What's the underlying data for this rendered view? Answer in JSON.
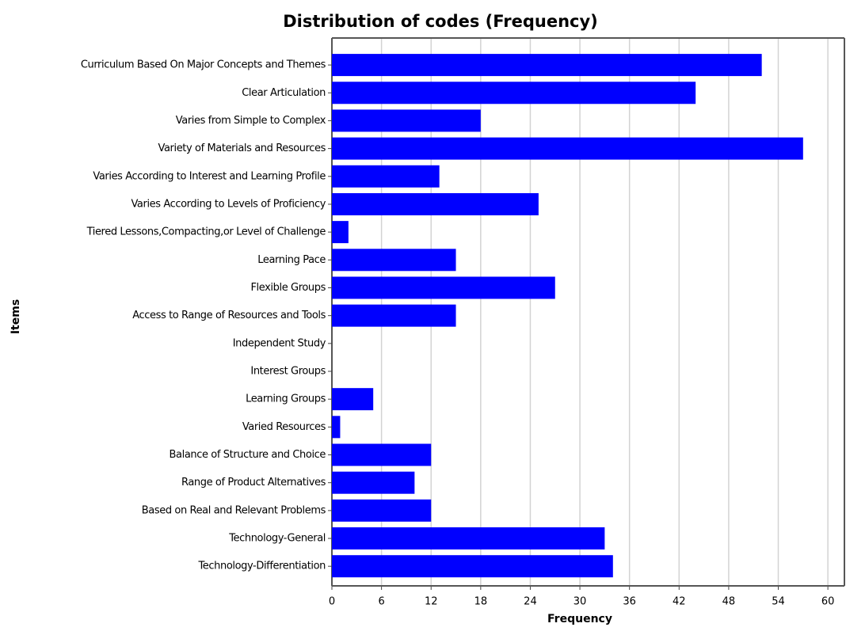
{
  "chart_data": {
    "type": "barh",
    "title": "Distribution of codes (Frequency)",
    "x_label": "Frequency",
    "y_label": "Items",
    "categories": [
      "Curriculum Based On Major Concepts and Themes",
      "Clear Articulation",
      "Varies from Simple to Complex",
      "Variety of Materials and Resources",
      "Varies According to Interest and Learning Profile",
      "Varies According to Levels of Proficiency",
      "Tiered Lessons,Compacting,or Level of Challenge",
      "Learning Pace",
      "Flexible Groups",
      "Access to Range of Resources and Tools",
      "Independent Study",
      "Interest Groups",
      "Learning Groups",
      "Varied Resources",
      "Balance of Structure and Choice",
      "Range of Product Alternatives",
      "Based on Real and Relevant Problems",
      "Technology-General",
      "Technology-Differentiation"
    ],
    "values": [
      52,
      44,
      18,
      57,
      13,
      25,
      2,
      15,
      27,
      15,
      0,
      0,
      5,
      1,
      12,
      10,
      12,
      33,
      34
    ],
    "color": "#0000ff",
    "xlim": [
      0,
      62
    ],
    "xticks": [
      0,
      6,
      12,
      18,
      24,
      30,
      36,
      42,
      48,
      54,
      60
    ],
    "grid": true
  }
}
